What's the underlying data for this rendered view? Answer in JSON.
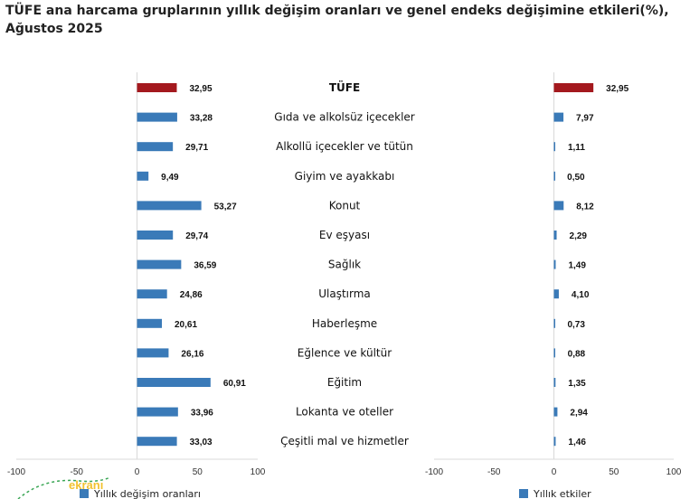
{
  "title": "TÜFE ana harcama gruplarının yıllık değişim oranları ve genel endeks değişimine etkileri(%), Ağustos 2025",
  "chart_data": [
    {
      "type": "bar",
      "orientation": "horizontal",
      "categories": [
        "TÜFE",
        "Gıda ve alkolsüz içecekler",
        "Alkollü içecekler ve tütün",
        "Giyim ve ayakkabı",
        "Konut",
        "Ev eşyası",
        "Sağlık",
        "Ulaştırma",
        "Haberleşme",
        "Eğlence ve kültür",
        "Eğitim",
        "Lokanta ve oteller",
        "Çeşitli mal ve hizmetler"
      ],
      "series": [
        {
          "name": "Yıllık değişim oranları",
          "values": [
            32.95,
            33.28,
            29.71,
            9.49,
            53.27,
            29.74,
            36.59,
            24.86,
            20.61,
            26.16,
            60.91,
            33.96,
            33.03
          ],
          "labels": [
            "32,95",
            "33,28",
            "29,71",
            "9,49",
            "53,27",
            "29,74",
            "36,59",
            "24,86",
            "20,61",
            "26,16",
            "60,91",
            "33,96",
            "33,03"
          ]
        }
      ],
      "xlim": [
        -100,
        100
      ],
      "ticks": [
        "-100",
        "-50",
        "0",
        "50",
        "100"
      ],
      "colors": {
        "highlight": "#a4191e",
        "bar": "#3a7ab8"
      },
      "legend": "bottom"
    },
    {
      "type": "bar",
      "orientation": "horizontal",
      "categories": [
        "TÜFE",
        "Gıda ve alkolsüz içecekler",
        "Alkollü içecekler ve tütün",
        "Giyim ve ayakkabı",
        "Konut",
        "Ev eşyası",
        "Sağlık",
        "Ulaştırma",
        "Haberleşme",
        "Eğlence ve kültür",
        "Eğitim",
        "Lokanta ve oteller",
        "Çeşitli mal ve hizmetler"
      ],
      "series": [
        {
          "name": "Yıllık etkiler",
          "values": [
            32.95,
            7.97,
            1.11,
            0.5,
            8.12,
            2.29,
            1.49,
            4.1,
            0.73,
            0.88,
            1.35,
            2.94,
            1.46
          ],
          "labels": [
            "32,95",
            "7,97",
            "1,11",
            "0,50",
            "8,12",
            "2,29",
            "1,49",
            "4,10",
            "0,73",
            "0,88",
            "1,35",
            "2,94",
            "1,46"
          ]
        }
      ],
      "xlim": [
        -100,
        100
      ],
      "ticks": [
        "-100",
        "-50",
        "0",
        "50",
        "100"
      ],
      "colors": {
        "highlight": "#a4191e",
        "bar": "#3a7ab8"
      },
      "legend": "bottom"
    }
  ],
  "watermark": {
    "text": "ekranı"
  }
}
